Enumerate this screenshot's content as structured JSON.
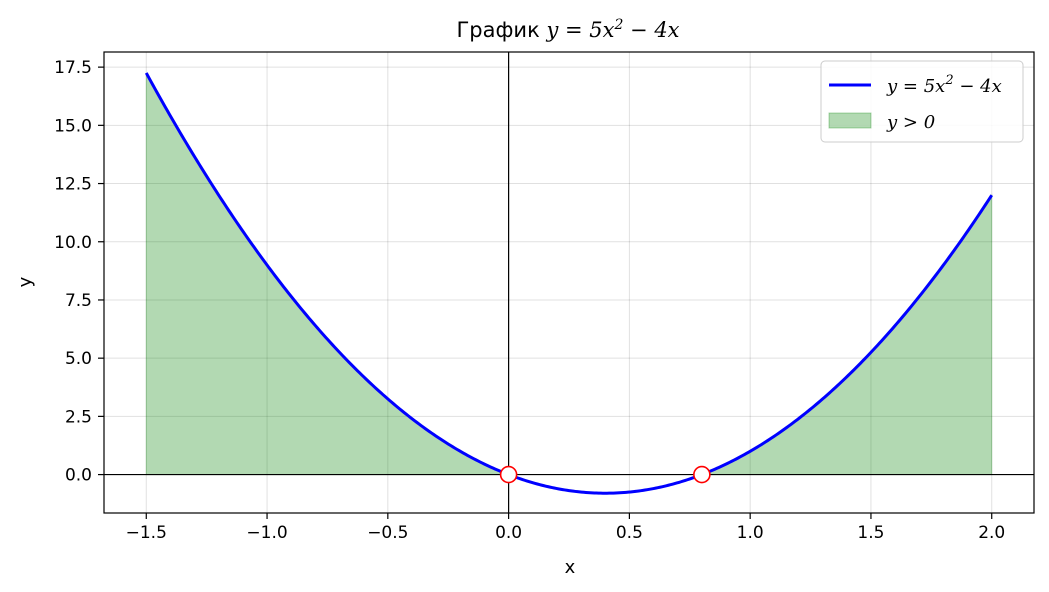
{
  "chart_data": {
    "type": "line",
    "title_prefix": "График ",
    "title_math": {
      "lhs": "y = 5x",
      "sup": "2",
      "rhs": " − 4x"
    },
    "xlabel": "x",
    "ylabel": "y",
    "xlim": [
      -1.675,
      2.175
    ],
    "ylim": [
      -1.65,
      18.15
    ],
    "xticks": [
      -1.5,
      -1.0,
      -0.5,
      0.0,
      0.5,
      1.0,
      1.5,
      2.0
    ],
    "xtick_labels": [
      "−1.5",
      "−1.0",
      "−0.5",
      "0.0",
      "0.5",
      "1.0",
      "1.5",
      "2.0"
    ],
    "yticks": [
      0.0,
      2.5,
      5.0,
      7.5,
      10.0,
      12.5,
      15.0,
      17.5
    ],
    "ytick_labels": [
      "0.0",
      "2.5",
      "5.0",
      "7.5",
      "10.0",
      "12.5",
      "15.0",
      "17.5"
    ],
    "grid": true,
    "function": {
      "a": 5,
      "b": -4,
      "c": 0,
      "x_range": [
        -1.5,
        2.0
      ]
    },
    "series": [
      {
        "legend": {
          "lhs": "y = 5x",
          "sup": "2",
          "rhs": " − 4x"
        },
        "color": "#0000ff",
        "kind": "line"
      },
      {
        "legend": {
          "lhs": "y > 0",
          "sup": "",
          "rhs": ""
        },
        "color": "#008000",
        "kind": "fill",
        "condition": "y > 0"
      }
    ],
    "roots": [
      {
        "x": 0.0,
        "y": 0.0
      },
      {
        "x": 0.8,
        "y": 0.0
      }
    ],
    "legend_position": "upper right"
  }
}
